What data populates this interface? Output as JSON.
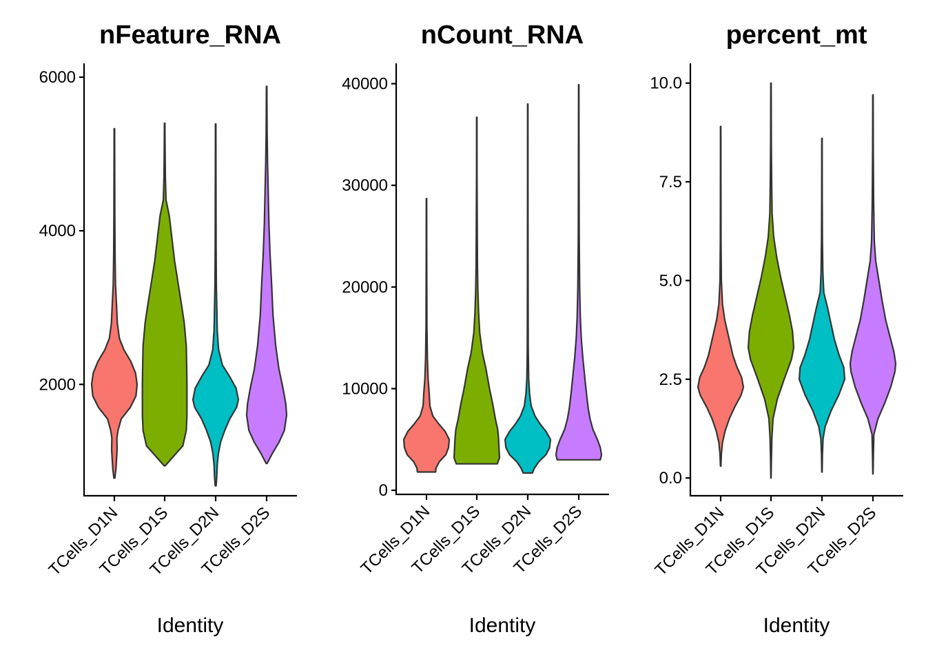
{
  "figure": {
    "colors": {
      "TCells_D1N": "#F8766D",
      "TCells_D1S": "#7CAE00",
      "TCells_D2N": "#00BFC4",
      "TCells_D2S": "#C77CFF",
      "outline": "#333333"
    }
  },
  "chart_data": [
    {
      "type": "violin",
      "title": "nFeature_RNA",
      "xlabel": "Identity",
      "ylabel": "",
      "grid": false,
      "legend": "none",
      "categories": [
        "TCells_D1N",
        "TCells_D1S",
        "TCells_D2N",
        "TCells_D2S"
      ],
      "ylim": [
        550,
        6180
      ],
      "yticks": [
        2000,
        4000,
        6000
      ],
      "ytick_labels": [
        "2000",
        "4000",
        "6000"
      ],
      "violins": [
        {
          "name": "TCells_D1N",
          "min": 780,
          "max": 5330,
          "profile": [
            [
              780,
              0.02
            ],
            [
              900,
              0.07
            ],
            [
              1000,
              0.09
            ],
            [
              1150,
              0.12
            ],
            [
              1300,
              0.11
            ],
            [
              1400,
              0.16
            ],
            [
              1550,
              0.3
            ],
            [
              1700,
              0.7
            ],
            [
              1850,
              0.95
            ],
            [
              2000,
              1.0
            ],
            [
              2150,
              0.93
            ],
            [
              2300,
              0.72
            ],
            [
              2450,
              0.42
            ],
            [
              2600,
              0.22
            ],
            [
              2800,
              0.13
            ],
            [
              3000,
              0.1
            ],
            [
              3300,
              0.05
            ],
            [
              3700,
              0.03
            ],
            [
              4200,
              0.02
            ],
            [
              4800,
              0.015
            ],
            [
              5330,
              0.01
            ]
          ]
        },
        {
          "name": "TCells_D1S",
          "min": 940,
          "max": 5400,
          "profile": [
            [
              940,
              0.02
            ],
            [
              1050,
              0.35
            ],
            [
              1200,
              0.8
            ],
            [
              1400,
              0.95
            ],
            [
              1600,
              0.98
            ],
            [
              1800,
              0.98
            ],
            [
              2000,
              0.98
            ],
            [
              2200,
              0.97
            ],
            [
              2500,
              0.95
            ],
            [
              2800,
              0.86
            ],
            [
              3000,
              0.76
            ],
            [
              3300,
              0.6
            ],
            [
              3600,
              0.44
            ],
            [
              3900,
              0.32
            ],
            [
              4200,
              0.2
            ],
            [
              4400,
              0.06
            ],
            [
              4700,
              0.03
            ],
            [
              5000,
              0.02
            ],
            [
              5400,
              0.01
            ]
          ]
        },
        {
          "name": "TCells_D2N",
          "min": 680,
          "max": 5390,
          "profile": [
            [
              680,
              0.02
            ],
            [
              800,
              0.05
            ],
            [
              950,
              0.07
            ],
            [
              1100,
              0.12
            ],
            [
              1250,
              0.22
            ],
            [
              1400,
              0.4
            ],
            [
              1550,
              0.62
            ],
            [
              1700,
              0.92
            ],
            [
              1800,
              1.0
            ],
            [
              1950,
              0.9
            ],
            [
              2100,
              0.62
            ],
            [
              2250,
              0.3
            ],
            [
              2450,
              0.13
            ],
            [
              2700,
              0.07
            ],
            [
              3000,
              0.05
            ],
            [
              3300,
              0.03
            ],
            [
              3800,
              0.02
            ],
            [
              4500,
              0.015
            ],
            [
              5390,
              0.01
            ]
          ]
        },
        {
          "name": "TCells_D2S",
          "min": 970,
          "max": 5880,
          "profile": [
            [
              970,
              0.02
            ],
            [
              1100,
              0.25
            ],
            [
              1250,
              0.55
            ],
            [
              1400,
              0.78
            ],
            [
              1600,
              0.88
            ],
            [
              1750,
              0.84
            ],
            [
              1950,
              0.72
            ],
            [
              2200,
              0.54
            ],
            [
              2500,
              0.4
            ],
            [
              2900,
              0.28
            ],
            [
              3300,
              0.22
            ],
            [
              3700,
              0.15
            ],
            [
              4100,
              0.1
            ],
            [
              4500,
              0.07
            ],
            [
              4900,
              0.04
            ],
            [
              5300,
              0.02
            ],
            [
              5880,
              0.01
            ]
          ]
        }
      ]
    },
    {
      "type": "violin",
      "title": "nCount_RNA",
      "xlabel": "Identity",
      "ylabel": "",
      "grid": false,
      "legend": "none",
      "categories": [
        "TCells_D1N",
        "TCells_D1S",
        "TCells_D2N",
        "TCells_D2S"
      ],
      "ylim": [
        -400,
        42000
      ],
      "yticks": [
        0,
        10000,
        20000,
        30000,
        40000
      ],
      "ytick_labels": [
        "0",
        "10000",
        "20000",
        "30000",
        "40000"
      ],
      "violins": [
        {
          "name": "TCells_D1N",
          "min": 1800,
          "max": 28700,
          "profile": [
            [
              1800,
              0.4
            ],
            [
              2200,
              0.42
            ],
            [
              2800,
              0.56
            ],
            [
              3500,
              0.85
            ],
            [
              4200,
              0.97
            ],
            [
              5000,
              1.0
            ],
            [
              5800,
              0.82
            ],
            [
              6500,
              0.55
            ],
            [
              7300,
              0.28
            ],
            [
              8300,
              0.15
            ],
            [
              9500,
              0.12
            ],
            [
              11000,
              0.07
            ],
            [
              13000,
              0.04
            ],
            [
              16000,
              0.02
            ],
            [
              20000,
              0.015
            ],
            [
              24000,
              0.01
            ],
            [
              28700,
              0.008
            ]
          ]
        },
        {
          "name": "TCells_D1S",
          "min": 2600,
          "max": 36700,
          "profile": [
            [
              2600,
              0.9
            ],
            [
              3200,
              1.0
            ],
            [
              4000,
              0.98
            ],
            [
              5000,
              0.96
            ],
            [
              6000,
              0.92
            ],
            [
              7000,
              0.82
            ],
            [
              8500,
              0.7
            ],
            [
              10000,
              0.56
            ],
            [
              12000,
              0.4
            ],
            [
              13500,
              0.25
            ],
            [
              15500,
              0.13
            ],
            [
              17500,
              0.08
            ],
            [
              19500,
              0.05
            ],
            [
              22000,
              0.03
            ],
            [
              26000,
              0.02
            ],
            [
              31000,
              0.01
            ],
            [
              36700,
              0.008
            ]
          ]
        },
        {
          "name": "TCells_D2N",
          "min": 1700,
          "max": 38000,
          "profile": [
            [
              1700,
              0.2
            ],
            [
              2200,
              0.3
            ],
            [
              2800,
              0.48
            ],
            [
              3500,
              0.8
            ],
            [
              4200,
              0.96
            ],
            [
              5000,
              1.0
            ],
            [
              5800,
              0.8
            ],
            [
              6500,
              0.55
            ],
            [
              7300,
              0.32
            ],
            [
              8300,
              0.15
            ],
            [
              9500,
              0.08
            ],
            [
              11000,
              0.04
            ],
            [
              14000,
              0.02
            ],
            [
              20000,
              0.015
            ],
            [
              28000,
              0.01
            ],
            [
              38000,
              0.008
            ]
          ]
        },
        {
          "name": "TCells_D2S",
          "min": 3000,
          "max": 39900,
          "profile": [
            [
              3000,
              0.95
            ],
            [
              3500,
              1.0
            ],
            [
              4200,
              0.95
            ],
            [
              5000,
              0.82
            ],
            [
              6000,
              0.62
            ],
            [
              7000,
              0.5
            ],
            [
              8000,
              0.42
            ],
            [
              9500,
              0.34
            ],
            [
              11000,
              0.27
            ],
            [
              13000,
              0.18
            ],
            [
              15000,
              0.11
            ],
            [
              17000,
              0.07
            ],
            [
              20000,
              0.04
            ],
            [
              25000,
              0.02
            ],
            [
              32000,
              0.012
            ],
            [
              39900,
              0.008
            ]
          ]
        }
      ]
    },
    {
      "type": "violin",
      "title": "percent_mt",
      "xlabel": "Identity",
      "ylabel": "",
      "grid": false,
      "legend": "none",
      "categories": [
        "TCells_D1N",
        "TCells_D1S",
        "TCells_D2N",
        "TCells_D2S"
      ],
      "ylim": [
        -0.45,
        10.5
      ],
      "yticks": [
        0.0,
        2.5,
        5.0,
        7.5,
        10.0
      ],
      "ytick_labels": [
        "0.0",
        "2.5",
        "5.0",
        "7.5",
        "10.0"
      ],
      "violins": [
        {
          "name": "TCells_D1N",
          "min": 0.3,
          "max": 8.9,
          "profile": [
            [
              0.3,
              0.01
            ],
            [
              0.6,
              0.03
            ],
            [
              0.9,
              0.08
            ],
            [
              1.2,
              0.2
            ],
            [
              1.5,
              0.38
            ],
            [
              1.8,
              0.62
            ],
            [
              2.1,
              0.9
            ],
            [
              2.3,
              1.0
            ],
            [
              2.55,
              0.92
            ],
            [
              2.8,
              0.72
            ],
            [
              3.1,
              0.54
            ],
            [
              3.4,
              0.42
            ],
            [
              3.7,
              0.3
            ],
            [
              4.0,
              0.18
            ],
            [
              4.4,
              0.08
            ],
            [
              5.0,
              0.03
            ],
            [
              6.0,
              0.015
            ],
            [
              7.5,
              0.01
            ],
            [
              8.9,
              0.008
            ]
          ]
        },
        {
          "name": "TCells_D1S",
          "min": 0.0,
          "max": 10.0,
          "profile": [
            [
              0.0,
              0.005
            ],
            [
              0.5,
              0.02
            ],
            [
              1.0,
              0.04
            ],
            [
              1.5,
              0.09
            ],
            [
              2.0,
              0.28
            ],
            [
              2.5,
              0.58
            ],
            [
              3.0,
              0.9
            ],
            [
              3.3,
              1.0
            ],
            [
              3.7,
              0.95
            ],
            [
              4.1,
              0.82
            ],
            [
              4.6,
              0.62
            ],
            [
              5.1,
              0.42
            ],
            [
              5.6,
              0.25
            ],
            [
              6.1,
              0.12
            ],
            [
              6.7,
              0.05
            ],
            [
              7.5,
              0.03
            ],
            [
              8.5,
              0.015
            ],
            [
              10.0,
              0.008
            ]
          ]
        },
        {
          "name": "TCells_D2N",
          "min": 0.15,
          "max": 8.6,
          "profile": [
            [
              0.15,
              0.008
            ],
            [
              0.6,
              0.02
            ],
            [
              1.0,
              0.05
            ],
            [
              1.3,
              0.14
            ],
            [
              1.7,
              0.4
            ],
            [
              2.1,
              0.74
            ],
            [
              2.5,
              1.0
            ],
            [
              2.8,
              0.96
            ],
            [
              3.1,
              0.76
            ],
            [
              3.5,
              0.55
            ],
            [
              3.9,
              0.4
            ],
            [
              4.3,
              0.25
            ],
            [
              4.7,
              0.08
            ],
            [
              5.2,
              0.04
            ],
            [
              6.0,
              0.02
            ],
            [
              7.0,
              0.012
            ],
            [
              8.6,
              0.008
            ]
          ]
        },
        {
          "name": "TCells_D2S",
          "min": 0.1,
          "max": 9.7,
          "profile": [
            [
              0.1,
              0.005
            ],
            [
              0.6,
              0.02
            ],
            [
              1.1,
              0.04
            ],
            [
              1.5,
              0.22
            ],
            [
              1.9,
              0.52
            ],
            [
              2.3,
              0.78
            ],
            [
              2.7,
              0.97
            ],
            [
              2.9,
              1.0
            ],
            [
              3.2,
              0.92
            ],
            [
              3.6,
              0.74
            ],
            [
              4.0,
              0.56
            ],
            [
              4.5,
              0.4
            ],
            [
              5.0,
              0.26
            ],
            [
              5.5,
              0.12
            ],
            [
              6.0,
              0.06
            ],
            [
              7.0,
              0.03
            ],
            [
              8.2,
              0.015
            ],
            [
              9.7,
              0.008
            ]
          ]
        }
      ]
    }
  ]
}
